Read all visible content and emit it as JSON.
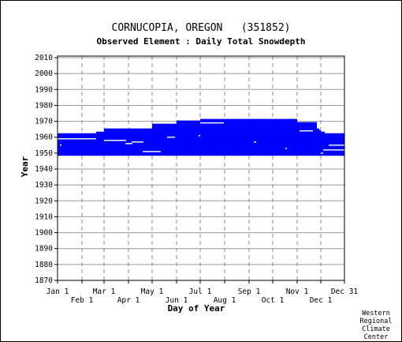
{
  "chart_data": {
    "type": "bar",
    "title": "CORNUCOPIA, OREGON   (351852)",
    "subtitle": "Observed Element : Daily Total Snowdepth",
    "xlabel": "Day of Year",
    "ylabel": "Year",
    "ylim": [
      1870,
      2011
    ],
    "xlim": [
      1,
      365
    ],
    "y_ticks": [
      2010,
      2000,
      1990,
      1980,
      1970,
      1960,
      1950,
      1940,
      1930,
      1920,
      1910,
      1900,
      1890,
      1880,
      1870
    ],
    "x_ticks_upper": [
      {
        "label": "Jan 1",
        "day": 1
      },
      {
        "label": "Mar 1",
        "day": 60
      },
      {
        "label": "May 1",
        "day": 121
      },
      {
        "label": "Jul 1",
        "day": 182
      },
      {
        "label": "Sep 1",
        "day": 244
      },
      {
        "label": "Nov 1",
        "day": 305
      },
      {
        "label": "Dec 31",
        "day": 365
      }
    ],
    "x_ticks_lower": [
      {
        "label": "Feb 1",
        "day": 32
      },
      {
        "label": "Apr 1",
        "day": 91
      },
      {
        "label": "Jun 1",
        "day": 152
      },
      {
        "label": "Aug 1",
        "day": 213
      },
      {
        "label": "Oct 1",
        "day": 274
      },
      {
        "label": "Dec 1",
        "day": 335
      }
    ],
    "grid": true,
    "bar_color": "#0000ff",
    "coverage": [
      {
        "year": 1949,
        "from": 1,
        "to": 365
      },
      {
        "year": 1950,
        "from": 1,
        "to": 365
      },
      {
        "year": 1951,
        "from": 1,
        "to": 365
      },
      {
        "year": 1952,
        "from": 1,
        "to": 365
      },
      {
        "year": 1953,
        "from": 1,
        "to": 365
      },
      {
        "year": 1954,
        "from": 1,
        "to": 365
      },
      {
        "year": 1955,
        "from": 1,
        "to": 365
      },
      {
        "year": 1956,
        "from": 1,
        "to": 365
      },
      {
        "year": 1957,
        "from": 1,
        "to": 365
      },
      {
        "year": 1958,
        "from": 1,
        "to": 365
      },
      {
        "year": 1959,
        "from": 1,
        "to": 365
      },
      {
        "year": 1960,
        "from": 1,
        "to": 365
      },
      {
        "year": 1961,
        "from": 1,
        "to": 365
      },
      {
        "year": 1962,
        "from": 1,
        "to": 365
      },
      {
        "year": 1963,
        "from": 50,
        "to": 340
      },
      {
        "year": 1964,
        "from": 60,
        "to": 335
      },
      {
        "year": 1965,
        "from": 60,
        "to": 333
      },
      {
        "year": 1966,
        "from": 121,
        "to": 330
      },
      {
        "year": 1967,
        "from": 121,
        "to": 330
      },
      {
        "year": 1968,
        "from": 121,
        "to": 330
      },
      {
        "year": 1969,
        "from": 152,
        "to": 330
      },
      {
        "year": 1970,
        "from": 152,
        "to": 305
      },
      {
        "year": 1971,
        "from": 182,
        "to": 305
      }
    ],
    "gaps": [
      {
        "year": 1959,
        "from": 1,
        "to": 50
      },
      {
        "year": 1958,
        "from": 60,
        "to": 88
      },
      {
        "year": 1957,
        "from": 95,
        "to": 110
      },
      {
        "year": 1956,
        "from": 87,
        "to": 96
      },
      {
        "year": 1955,
        "from": 345,
        "to": 365
      },
      {
        "year": 1955,
        "from": 4,
        "to": 6
      },
      {
        "year": 1952,
        "from": 338,
        "to": 365
      },
      {
        "year": 1951,
        "from": 109,
        "to": 132
      },
      {
        "year": 1969,
        "from": 182,
        "to": 212
      },
      {
        "year": 1964,
        "from": 308,
        "to": 325
      },
      {
        "year": 1961,
        "from": 180,
        "to": 182
      },
      {
        "year": 1960,
        "from": 140,
        "to": 150
      },
      {
        "year": 1957,
        "from": 250,
        "to": 253
      },
      {
        "year": 1953,
        "from": 290,
        "to": 292
      },
      {
        "year": 1950,
        "from": 335,
        "to": 338
      }
    ]
  },
  "credit": [
    "Western",
    "Regional",
    "Climate",
    "Center"
  ]
}
